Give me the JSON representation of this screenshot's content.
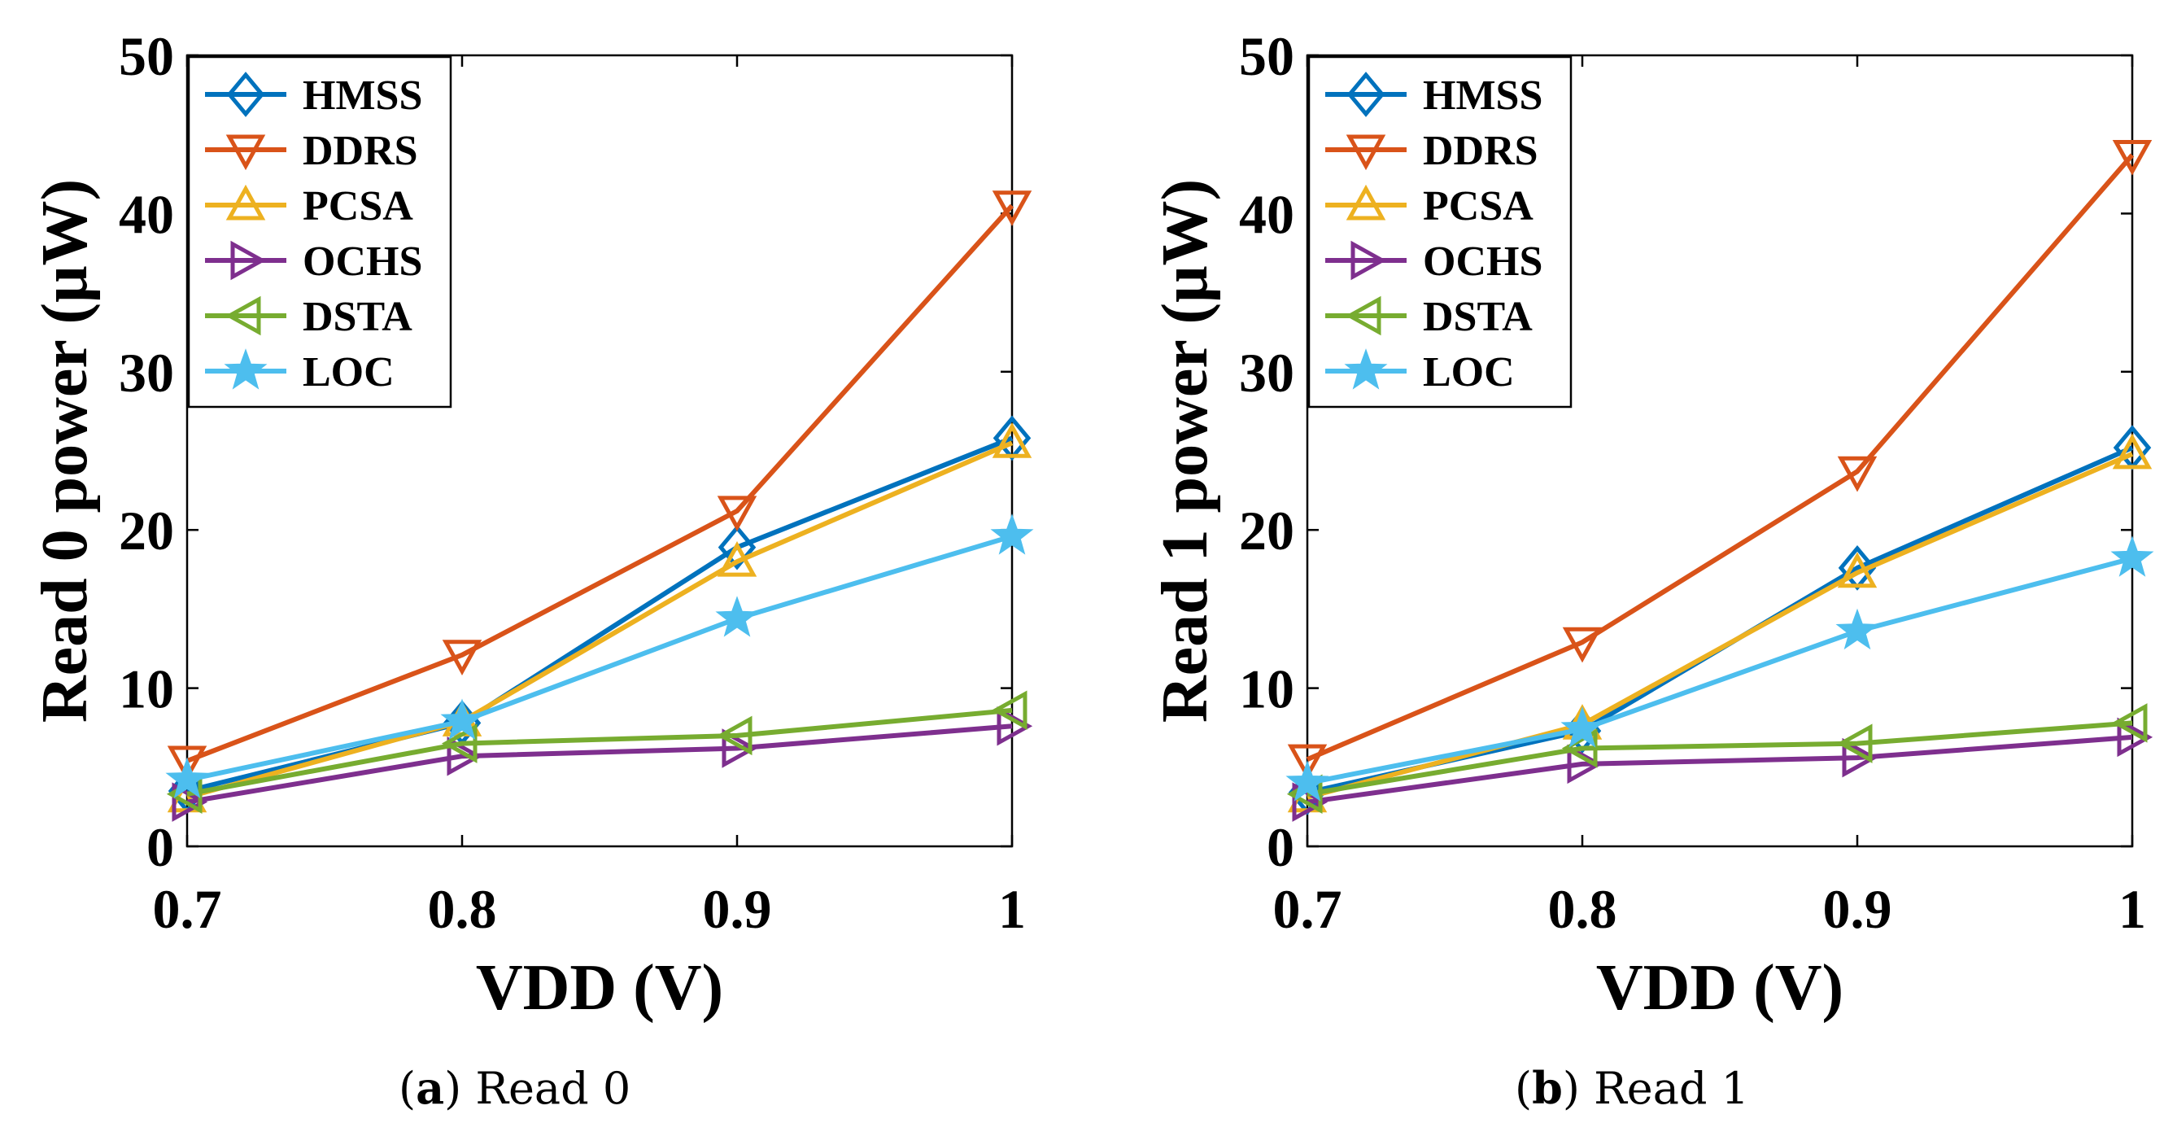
{
  "chart_data": [
    {
      "type": "line",
      "title": "",
      "xlabel": "VDD (V)",
      "ylabel": "Read 0 power (μW)",
      "x": [
        0.7,
        0.8,
        0.9,
        1.0
      ],
      "xtick_labels": [
        "0.7",
        "0.8",
        "0.9",
        "1"
      ],
      "ylim": [
        0,
        50
      ],
      "xlim": [
        0.7,
        1.0
      ],
      "yticks": [
        0,
        10,
        20,
        30,
        40,
        50
      ],
      "legend_position": "top-left",
      "grid": false,
      "caption": {
        "letter": "a",
        "text": "Read 0"
      },
      "series": [
        {
          "name": "HMSS",
          "color": "#0072BD",
          "marker": "diamond",
          "values": [
            3.5,
            7.8,
            18.9,
            25.8
          ]
        },
        {
          "name": "DDRS",
          "color": "#D95319",
          "marker": "triangle-down",
          "values": [
            5.4,
            12.1,
            21.2,
            40.5
          ]
        },
        {
          "name": "PCSA",
          "color": "#EDB120",
          "marker": "triangle-up",
          "values": [
            3.1,
            7.9,
            18.0,
            25.5
          ]
        },
        {
          "name": "OCHS",
          "color": "#7E2F8E",
          "marker": "triangle-right",
          "values": [
            2.8,
            5.7,
            6.2,
            7.6
          ]
        },
        {
          "name": "DSTA",
          "color": "#77AC30",
          "marker": "triangle-left",
          "values": [
            3.3,
            6.5,
            7.0,
            8.6
          ]
        },
        {
          "name": "LOC",
          "color": "#4DBEEE",
          "marker": "star",
          "values": [
            4.2,
            7.9,
            14.4,
            19.6
          ]
        }
      ]
    },
    {
      "type": "line",
      "title": "",
      "xlabel": "VDD (V)",
      "ylabel": "Read 1 power (μW)",
      "x": [
        0.7,
        0.8,
        0.9,
        1.0
      ],
      "xtick_labels": [
        "0.7",
        "0.8",
        "0.9",
        "1"
      ],
      "ylim": [
        0,
        50
      ],
      "xlim": [
        0.7,
        1.0
      ],
      "yticks": [
        0,
        10,
        20,
        30,
        40,
        50
      ],
      "legend_position": "top-left",
      "grid": false,
      "caption": {
        "letter": "b",
        "text": "Read 1"
      },
      "series": [
        {
          "name": "HMSS",
          "color": "#0072BD",
          "marker": "diamond",
          "values": [
            3.4,
            7.3,
            17.6,
            25.2
          ]
        },
        {
          "name": "DDRS",
          "color": "#D95319",
          "marker": "triangle-down",
          "values": [
            5.5,
            12.9,
            23.7,
            43.7
          ]
        },
        {
          "name": "PCSA",
          "color": "#EDB120",
          "marker": "triangle-up",
          "values": [
            3.1,
            7.7,
            17.3,
            24.8
          ]
        },
        {
          "name": "OCHS",
          "color": "#7E2F8E",
          "marker": "triangle-right",
          "values": [
            2.8,
            5.2,
            5.6,
            6.9
          ]
        },
        {
          "name": "DSTA",
          "color": "#77AC30",
          "marker": "triangle-left",
          "values": [
            3.3,
            6.2,
            6.5,
            7.8
          ]
        },
        {
          "name": "LOC",
          "color": "#4DBEEE",
          "marker": "star",
          "values": [
            4.0,
            7.4,
            13.6,
            18.2
          ]
        }
      ]
    }
  ]
}
